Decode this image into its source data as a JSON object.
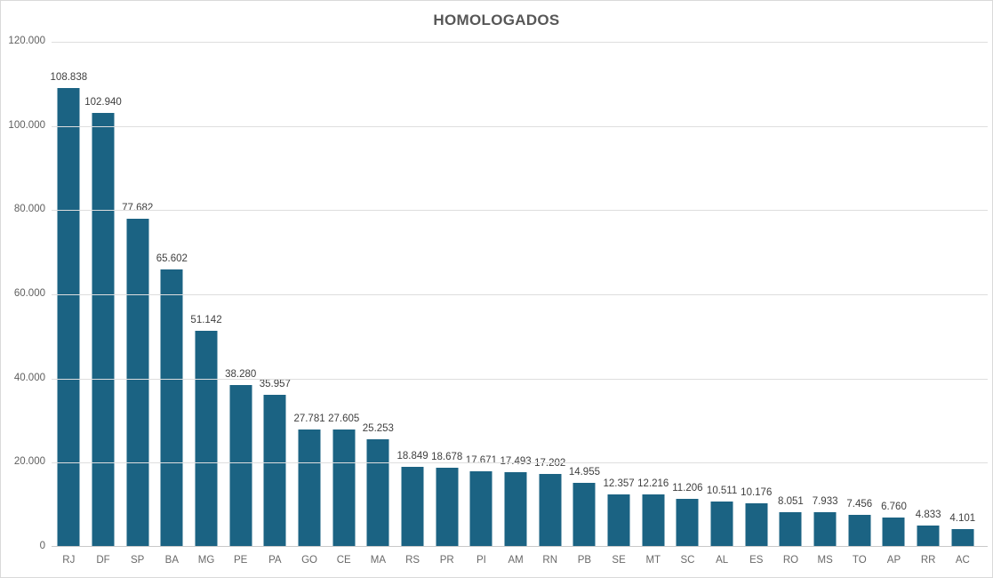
{
  "chart": {
    "title": "HOMOLOGADOS"
  },
  "chart_data": {
    "type": "bar",
    "title": "HOMOLOGADOS",
    "xlabel": "",
    "ylabel": "",
    "categories": [
      "RJ",
      "DF",
      "SP",
      "BA",
      "MG",
      "PE",
      "PA",
      "GO",
      "CE",
      "MA",
      "RS",
      "PR",
      "PI",
      "AM",
      "RN",
      "PB",
      "SE",
      "MT",
      "SC",
      "AL",
      "ES",
      "RO",
      "MS",
      "TO",
      "AP",
      "RR",
      "AC"
    ],
    "values": [
      108838,
      102940,
      77682,
      65602,
      51142,
      38280,
      35957,
      27781,
      27605,
      25253,
      18849,
      18678,
      17671,
      17493,
      17202,
      14955,
      12357,
      12216,
      11206,
      10511,
      10176,
      8051,
      7933,
      7456,
      6760,
      4833,
      4101
    ],
    "value_labels": [
      "108.838",
      "102.940",
      "77.682",
      "65.602",
      "51.142",
      "38.280",
      "35.957",
      "27.781",
      "27.605",
      "25.253",
      "18.849",
      "18.678",
      "17.671",
      "17.493",
      "17.202",
      "14.955",
      "12.357",
      "12.216",
      "11.206",
      "10.511",
      "10.176",
      "8.051",
      "7.933",
      "7.456",
      "6.760",
      "4.833",
      "4.101"
    ],
    "y_ticks": [
      {
        "value": 120000,
        "label": "120.000"
      },
      {
        "value": 100000,
        "label": "100.000"
      },
      {
        "value": 80000,
        "label": "80.000"
      },
      {
        "value": 60000,
        "label": "60.000"
      },
      {
        "value": 40000,
        "label": "40.000"
      },
      {
        "value": 20000,
        "label": "20.000"
      },
      {
        "value": 0,
        "label": "0"
      }
    ],
    "ylim": [
      0,
      120000
    ],
    "grid": true,
    "legend_position": "none",
    "bar_color": "#1b6383",
    "colors": {
      "bar": "#1b6383",
      "gridline": "#dedede",
      "axis_line": "#c9c9c9",
      "title_text": "#575757",
      "value_label_text": "#3f3f3f",
      "tick_label_text": "#5f5f5f"
    }
  }
}
